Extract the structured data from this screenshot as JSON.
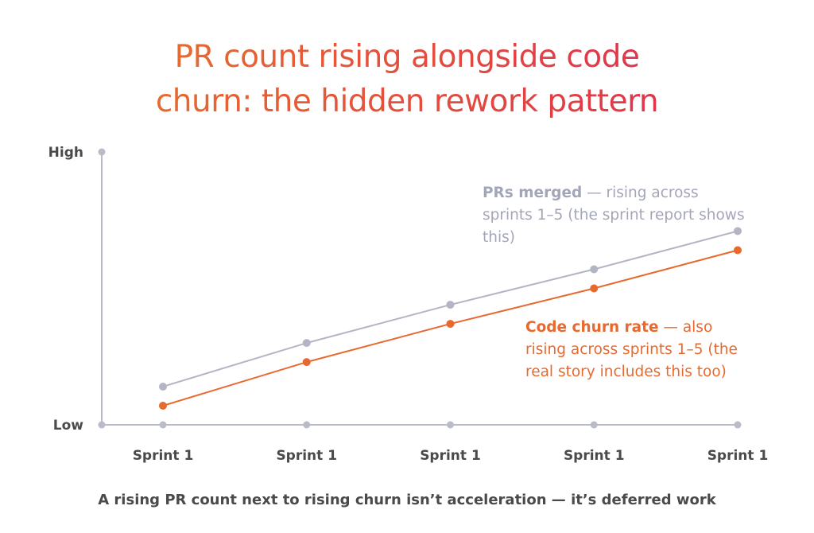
{
  "title": {
    "line1": "PR count rising alongside code",
    "line2": "churn: the hidden rework pattern"
  },
  "footer": "A rising PR count next to rising churn isn’t acceleration — it’s deferred work",
  "colors": {
    "title_gradient": [
      "#e8692e",
      "#e0354a"
    ],
    "axis": "#b9bbc8",
    "prs_merged": "#b3b5c5",
    "code_churn": "#e8692e",
    "tick_text": "#4a4a4a"
  },
  "chart_data": {
    "type": "line",
    "categories": [
      "Sprint 1",
      "Sprint 1",
      "Sprint 1",
      "Sprint 1",
      "Sprint 1"
    ],
    "y_ticks": [
      "Low",
      "High"
    ],
    "ylim": [
      0,
      100
    ],
    "grid": false,
    "series": [
      {
        "name": "PRs merged",
        "color": "#b3b5c5",
        "values": [
          14,
          30,
          44,
          57,
          71
        ],
        "annotation": {
          "lead": "PRs merged",
          "rest": " — rising across sprints 1–5 (the sprint report shows this)"
        }
      },
      {
        "name": "Code churn rate",
        "color": "#e8692e",
        "values": [
          7,
          23,
          37,
          50,
          64
        ],
        "annotation": {
          "lead": "Code churn rate",
          "rest": " — also rising across sprints 1–5 (the real story includes this too)"
        }
      }
    ]
  }
}
